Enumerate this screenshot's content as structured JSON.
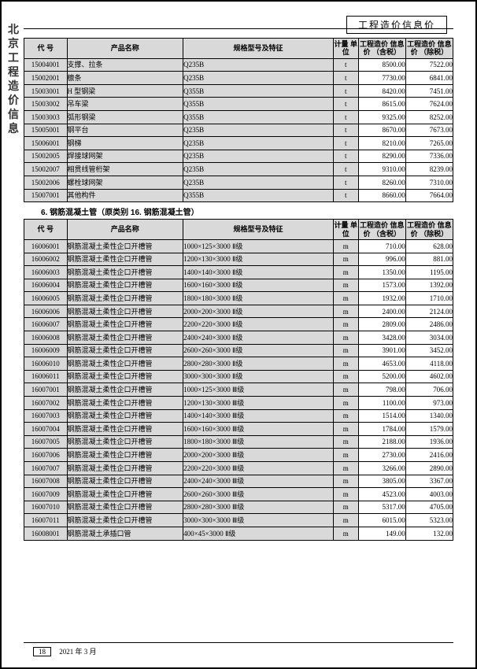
{
  "side_title": "北京工程造价信息",
  "header_label": "工程造价信息价",
  "footer": {
    "page": "18",
    "date": "2021 年 3 月"
  },
  "columns": {
    "code": "代  号",
    "name": "产品名称",
    "spec": "规格型号及特征",
    "unit": "计量\n单位",
    "p1": "工程造价\n信息价\n（含税）",
    "p2": "工程造价\n信息价\n（除税）"
  },
  "table1_rows": [
    [
      "15004001",
      "支撑、拉条",
      "Q235B",
      "t",
      "8500.00",
      "7522.00"
    ],
    [
      "15002001",
      "檩条",
      "Q235B",
      "t",
      "7730.00",
      "6841.00"
    ],
    [
      "15003001",
      "H 型钢梁",
      "Q355B",
      "t",
      "8420.00",
      "7451.00"
    ],
    [
      "15003002",
      "吊车梁",
      "Q355B",
      "t",
      "8615.00",
      "7624.00"
    ],
    [
      "15003003",
      "弧形钢梁",
      "Q355B",
      "t",
      "9325.00",
      "8252.00"
    ],
    [
      "15005001",
      "钢平台",
      "Q235B",
      "t",
      "8670.00",
      "7673.00"
    ],
    [
      "15006001",
      "钢梯",
      "Q235B",
      "t",
      "8210.00",
      "7265.00"
    ],
    [
      "15002005",
      "焊接球网架",
      "Q235B",
      "t",
      "8290.00",
      "7336.00"
    ],
    [
      "15002007",
      "相贯线管桁架",
      "Q235B",
      "t",
      "9310.00",
      "8239.00"
    ],
    [
      "15002006",
      "螺栓球网架",
      "Q235B",
      "t",
      "8260.00",
      "7310.00"
    ],
    [
      "15007001",
      "其他构件",
      "Q355B",
      "t",
      "8660.00",
      "7664.00"
    ]
  ],
  "section2_title": "6. 钢筋混凝土管（原类别 16. 钢筋混凝土管）",
  "table2_rows": [
    [
      "16006001",
      "钢筋混凝土柔性企口开槽管",
      "1000×125×3000  Ⅱ级",
      "m",
      "710.00",
      "628.00"
    ],
    [
      "16006002",
      "钢筋混凝土柔性企口开槽管",
      "1200×130×3000  Ⅱ级",
      "m",
      "996.00",
      "881.00"
    ],
    [
      "16006003",
      "钢筋混凝土柔性企口开槽管",
      "1400×140×3000  Ⅱ级",
      "m",
      "1350.00",
      "1195.00"
    ],
    [
      "16006004",
      "钢筋混凝土柔性企口开槽管",
      "1600×160×3000  Ⅱ级",
      "m",
      "1573.00",
      "1392.00"
    ],
    [
      "16006005",
      "钢筋混凝土柔性企口开槽管",
      "1800×180×3000  Ⅱ级",
      "m",
      "1932.00",
      "1710.00"
    ],
    [
      "16006006",
      "钢筋混凝土柔性企口开槽管",
      "2000×200×3000  Ⅱ级",
      "m",
      "2400.00",
      "2124.00"
    ],
    [
      "16006007",
      "钢筋混凝土柔性企口开槽管",
      "2200×220×3000  Ⅱ级",
      "m",
      "2809.00",
      "2486.00"
    ],
    [
      "16006008",
      "钢筋混凝土柔性企口开槽管",
      "2400×240×3000  Ⅱ级",
      "m",
      "3428.00",
      "3034.00"
    ],
    [
      "16006009",
      "钢筋混凝土柔性企口开槽管",
      "2600×260×3000  Ⅱ级",
      "m",
      "3901.00",
      "3452.00"
    ],
    [
      "16006010",
      "钢筋混凝土柔性企口开槽管",
      "2800×280×3000  Ⅱ级",
      "m",
      "4653.00",
      "4118.00"
    ],
    [
      "16006011",
      "钢筋混凝土柔性企口开槽管",
      "3000×300×3000  Ⅱ级",
      "m",
      "5200.00",
      "4602.00"
    ],
    [
      "16007001",
      "钢筋混凝土柔性企口开槽管",
      "1000×125×3000  Ⅲ级",
      "m",
      "798.00",
      "706.00"
    ],
    [
      "16007002",
      "钢筋混凝土柔性企口开槽管",
      "1200×130×3000  Ⅲ级",
      "m",
      "1100.00",
      "973.00"
    ],
    [
      "16007003",
      "钢筋混凝土柔性企口开槽管",
      "1400×140×3000  Ⅲ级",
      "m",
      "1514.00",
      "1340.00"
    ],
    [
      "16007004",
      "钢筋混凝土柔性企口开槽管",
      "1600×160×3000  Ⅲ级",
      "m",
      "1784.00",
      "1579.00"
    ],
    [
      "16007005",
      "钢筋混凝土柔性企口开槽管",
      "1800×180×3000  Ⅲ级",
      "m",
      "2188.00",
      "1936.00"
    ],
    [
      "16007006",
      "钢筋混凝土柔性企口开槽管",
      "2000×200×3000  Ⅲ级",
      "m",
      "2730.00",
      "2416.00"
    ],
    [
      "16007007",
      "钢筋混凝土柔性企口开槽管",
      "2200×220×3000  Ⅲ级",
      "m",
      "3266.00",
      "2890.00"
    ],
    [
      "16007008",
      "钢筋混凝土柔性企口开槽管",
      "2400×240×3000  Ⅲ级",
      "m",
      "3805.00",
      "3367.00"
    ],
    [
      "16007009",
      "钢筋混凝土柔性企口开槽管",
      "2600×260×3000  Ⅲ级",
      "m",
      "4523.00",
      "4003.00"
    ],
    [
      "16007010",
      "钢筋混凝土柔性企口开槽管",
      "2800×280×3000  Ⅲ级",
      "m",
      "5317.00",
      "4705.00"
    ],
    [
      "16007011",
      "钢筋混凝土柔性企口开槽管",
      "3000×300×3000  Ⅲ级",
      "m",
      "6015.00",
      "5323.00"
    ],
    [
      "16008001",
      "钢筋混凝土承插口管",
      "400×45×3000  Ⅱ级",
      "m",
      "149.00",
      "132.00"
    ]
  ]
}
